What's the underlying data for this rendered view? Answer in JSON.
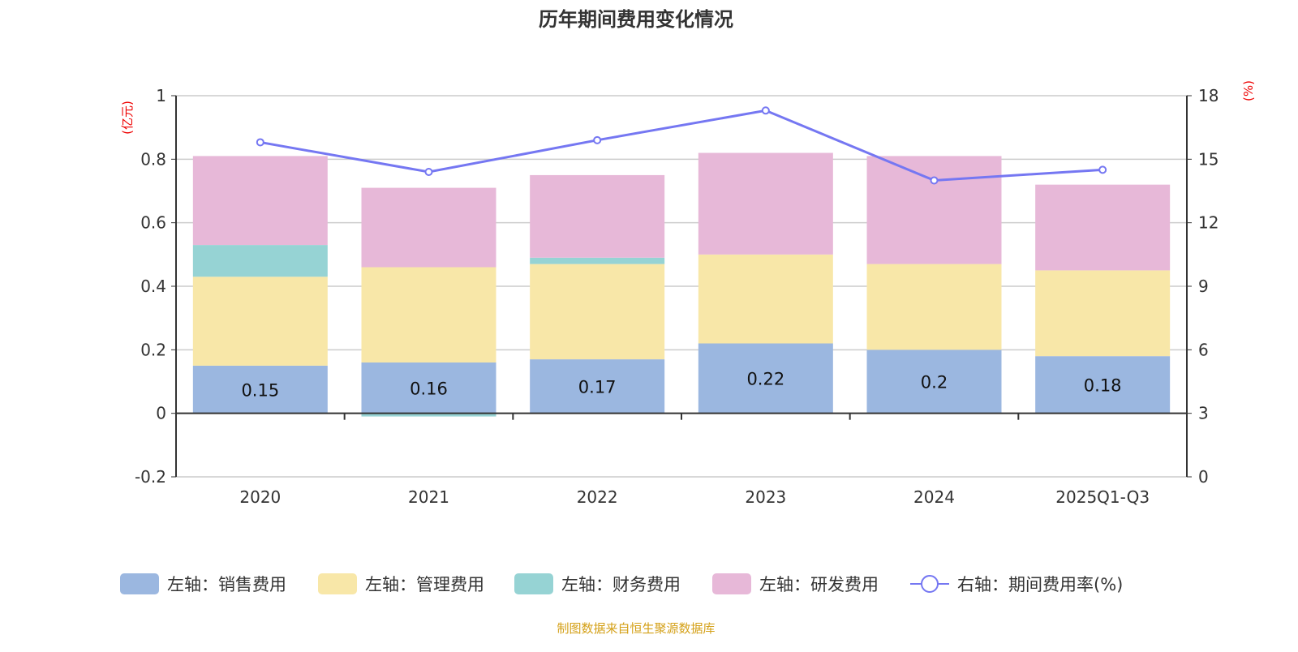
{
  "chart_data": {
    "type": "bar",
    "title": "历年期间费用变化情况",
    "categories": [
      "2020",
      "2021",
      "2022",
      "2023",
      "2024",
      "2025Q1-Q3"
    ],
    "left_axis": {
      "unit_label": "(亿元)",
      "range": [
        -0.2,
        1
      ],
      "ticks": [
        "1",
        "0.8",
        "0.6",
        "0.4",
        "0.2",
        "0",
        "-0.2"
      ]
    },
    "right_axis": {
      "unit_label": "(%)",
      "range": [
        0,
        18
      ],
      "ticks": [
        "18",
        "15",
        "12",
        "9",
        "6",
        "3",
        "0"
      ]
    },
    "grid": true,
    "legend_position": "bottom",
    "series": [
      {
        "name": "左轴：销售费用",
        "type": "bar",
        "axis": "left",
        "color": "#9bb7e0",
        "values": [
          0.15,
          0.16,
          0.17,
          0.22,
          0.2,
          0.18
        ],
        "labels": [
          "0.15",
          "0.16",
          "0.17",
          "0.22",
          "0.2",
          "0.18"
        ]
      },
      {
        "name": "左轴：管理费用",
        "type": "bar",
        "axis": "left",
        "color": "#f8e7a8",
        "values": [
          0.28,
          0.3,
          0.3,
          0.28,
          0.27,
          0.27
        ]
      },
      {
        "name": "左轴：财务费用",
        "type": "bar",
        "axis": "left",
        "color": "#96d3d4",
        "values": [
          0.1,
          -0.01,
          0.02,
          0.0,
          0.0,
          0.0
        ]
      },
      {
        "name": "左轴：研发费用",
        "type": "bar",
        "axis": "left",
        "color": "#e7b8d8",
        "values": [
          0.28,
          0.25,
          0.26,
          0.32,
          0.34,
          0.27
        ]
      },
      {
        "name": "右轴：期间费用率(%)",
        "type": "line",
        "axis": "right",
        "color": "#7577f2",
        "values": [
          15.8,
          14.4,
          15.9,
          17.3,
          14.0,
          14.5
        ]
      }
    ]
  },
  "footer": "制图数据来自恒生聚源数据库"
}
